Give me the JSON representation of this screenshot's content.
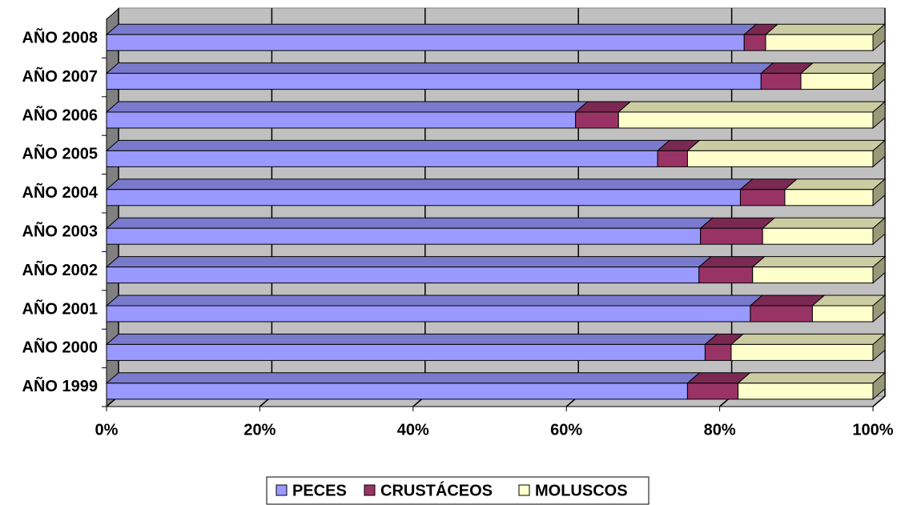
{
  "chart_data": {
    "type": "stacked_bar_horizontal_3d",
    "categories": [
      "AÑO 1999",
      "AÑO 2000",
      "AÑO 2001",
      "AÑO 2002",
      "AÑO 2003",
      "AÑO 2004",
      "AÑO 2005",
      "AÑO 2006",
      "AÑO 2007",
      "AÑO 2008"
    ],
    "series": [
      {
        "name": "PECES",
        "color": "#9999ff",
        "values": [
          75.8,
          78.1,
          84.0,
          77.3,
          77.5,
          82.7,
          71.9,
          61.2,
          85.4,
          83.2
        ]
      },
      {
        "name": "CRUSTÁCEOS",
        "color": "#993366",
        "values": [
          6.6,
          3.4,
          8.1,
          7.0,
          8.1,
          5.8,
          3.9,
          5.6,
          5.2,
          2.8
        ]
      },
      {
        "name": "MOLUSCOS",
        "color": "#ffffcc",
        "values": [
          17.6,
          18.5,
          7.9,
          15.7,
          14.4,
          11.5,
          24.2,
          33.2,
          9.4,
          14.0
        ]
      }
    ],
    "xlim": [
      0,
      100
    ],
    "xticks": [
      {
        "value": 0,
        "label": "0%"
      },
      {
        "value": 20,
        "label": "20%"
      },
      {
        "value": 40,
        "label": "40%"
      },
      {
        "value": 60,
        "label": "60%"
      },
      {
        "value": 80,
        "label": "80%"
      },
      {
        "value": 100,
        "label": "100%"
      }
    ],
    "grid": true,
    "legend": "bottom"
  }
}
